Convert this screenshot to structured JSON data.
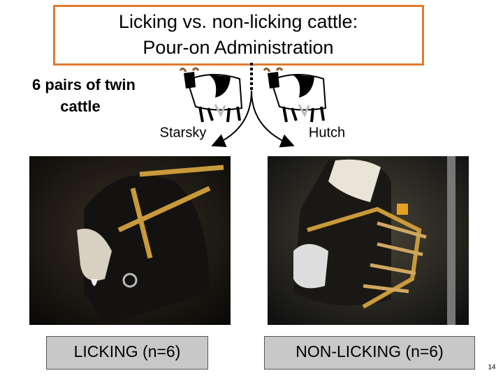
{
  "slide": {
    "title": [
      "Licking vs. non-licking cattle:",
      "Pour-on Administration"
    ],
    "subtitle": [
      "6 pairs of twin",
      "cattle"
    ],
    "twins": [
      "Starsky",
      "Hutch"
    ],
    "captions": [
      "LICKING  (n=6)",
      "NON-LICKING  (n=6)"
    ],
    "page_number": "14"
  }
}
